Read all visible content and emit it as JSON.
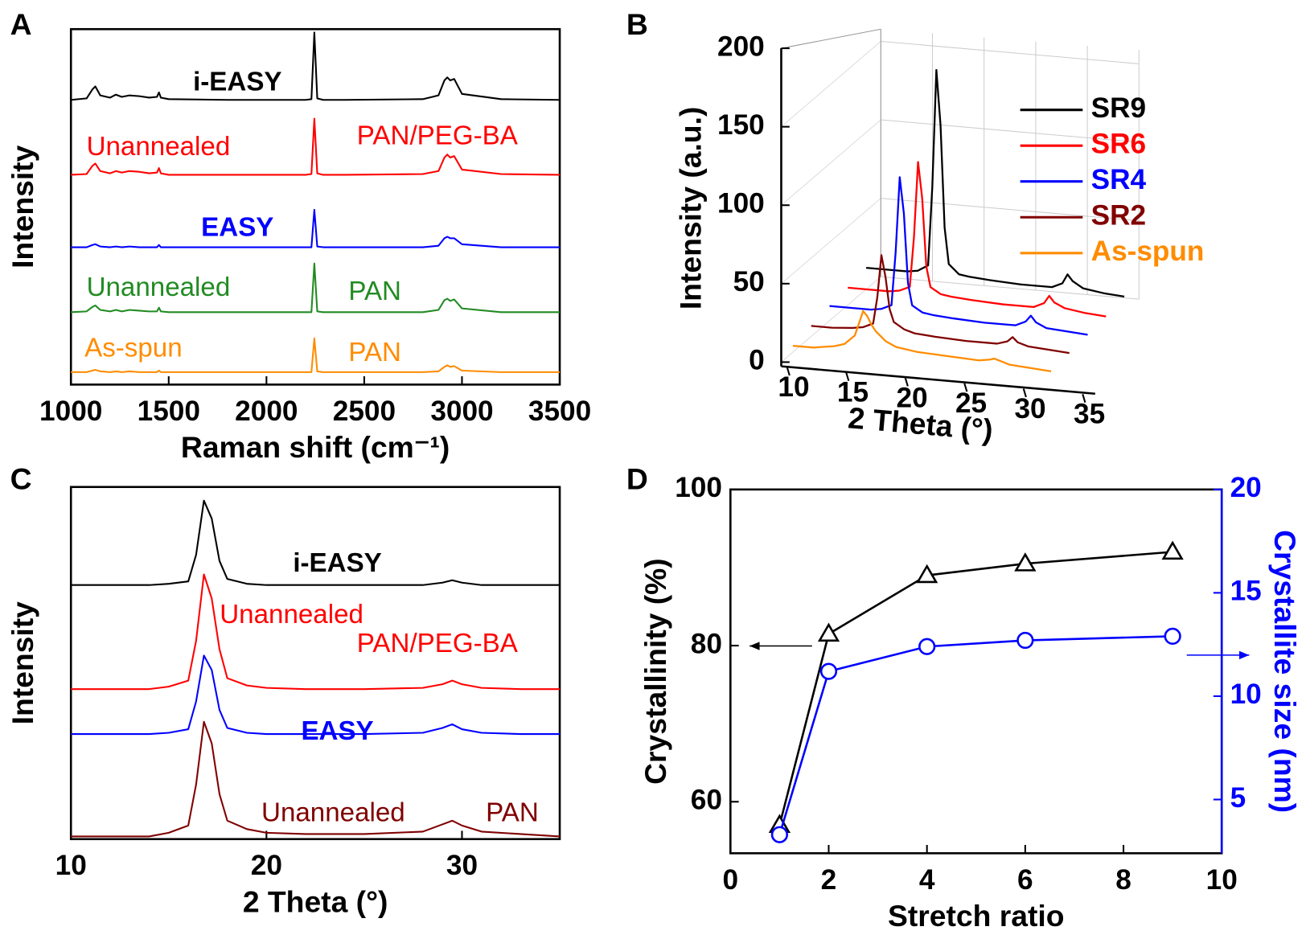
{
  "chart_data": [
    {
      "panel": "A",
      "type": "line",
      "offset_traces": true,
      "xlabel": "Raman shift (cm⁻¹)",
      "ylabel": "Intensity",
      "xlim": [
        1000,
        3500
      ],
      "xticks": [
        1000,
        1500,
        2000,
        2500,
        3000,
        3500
      ],
      "x": [
        1000,
        1080,
        1110,
        1125,
        1150,
        1200,
        1230,
        1260,
        1300,
        1350,
        1400,
        1440,
        1450,
        1460,
        1500,
        1800,
        2100,
        2200,
        2230,
        2245,
        2260,
        2290,
        2400,
        2800,
        2880,
        2910,
        2925,
        2940,
        2960,
        3000,
        3200,
        3500
      ],
      "series": [
        {
          "name": "i-EASY",
          "color": "#000000",
          "bold": true,
          "values": [
            10,
            12,
            24,
            28,
            16,
            13,
            17,
            14,
            16,
            15,
            13,
            14,
            20,
            13,
            11,
            10,
            10,
            10,
            11,
            100,
            12,
            10,
            10,
            11,
            16,
            36,
            40,
            36,
            38,
            18,
            11,
            10
          ]
        },
        {
          "name": "Unannealed",
          "material": "PAN/PEG-BA",
          "color": "#ff0000",
          "values": [
            10,
            11,
            22,
            25,
            15,
            12,
            15,
            13,
            15,
            14,
            12,
            13,
            19,
            12,
            10,
            10,
            10,
            10,
            11,
            85,
            12,
            10,
            10,
            11,
            15,
            33,
            37,
            33,
            35,
            17,
            11,
            10
          ]
        },
        {
          "name": "EASY",
          "color": "#0000ff",
          "bold": true,
          "values": [
            10,
            10,
            13,
            14,
            11,
            10,
            11,
            10,
            11,
            10,
            10,
            10,
            13,
            10,
            10,
            10,
            10,
            10,
            10,
            60,
            11,
            10,
            10,
            10,
            12,
            22,
            24,
            22,
            22,
            14,
            10,
            10
          ]
        },
        {
          "name": "Unannealed",
          "material": "PAN",
          "color": "#228b22",
          "values": [
            10,
            11,
            17,
            19,
            13,
            11,
            13,
            11,
            13,
            12,
            11,
            11,
            16,
            11,
            10,
            10,
            10,
            10,
            10,
            75,
            11,
            10,
            10,
            10,
            13,
            26,
            28,
            25,
            27,
            15,
            10,
            10
          ]
        },
        {
          "name": "As-spun",
          "material": "PAN",
          "color": "#ff8c00",
          "values": [
            10,
            10,
            12,
            13,
            11,
            10,
            11,
            10,
            11,
            10,
            10,
            10,
            12,
            10,
            10,
            10,
            10,
            10,
            10,
            55,
            11,
            10,
            10,
            10,
            11,
            17,
            19,
            17,
            18,
            12,
            10,
            10
          ]
        }
      ]
    },
    {
      "panel": "B",
      "type": "waterfall",
      "xlabel": "2 Theta (°)",
      "ylabel": "Intensity (a.u.)",
      "xlim": [
        10,
        35
      ],
      "xticks": [
        10,
        15,
        20,
        25,
        30,
        35
      ],
      "ylim": [
        0,
        200
      ],
      "yticks": [
        0,
        50,
        100,
        150,
        200
      ],
      "grid": true,
      "legend": "upper right",
      "x": [
        10,
        12,
        14,
        15,
        16,
        16.4,
        16.8,
        17.2,
        17.6,
        18,
        19,
        20,
        22,
        25,
        28,
        29,
        29.5,
        30,
        31,
        33,
        35
      ],
      "series": [
        {
          "name": "SR9",
          "color": "#000000",
          "values": [
            15,
            15,
            15,
            16,
            20,
            70,
            145,
            110,
            45,
            22,
            16,
            15,
            14,
            13,
            13,
            16,
            22,
            18,
            14,
            12,
            11
          ]
        },
        {
          "name": "SR6",
          "color": "#ff0000",
          "values": [
            14,
            14,
            14,
            15,
            18,
            50,
            98,
            75,
            32,
            19,
            15,
            14,
            13,
            12,
            12,
            15,
            20,
            16,
            13,
            11,
            10
          ]
        },
        {
          "name": "SR4",
          "color": "#0000ff",
          "values": [
            14,
            14,
            14,
            15,
            18,
            52,
            100,
            77,
            33,
            19,
            15,
            14,
            13,
            12,
            12,
            15,
            19,
            15,
            12,
            11,
            10
          ]
        },
        {
          "name": "SR2",
          "color": "#800000",
          "values": [
            13,
            13,
            14,
            15,
            18,
            35,
            62,
            48,
            28,
            20,
            16,
            14,
            13,
            12,
            12,
            14,
            17,
            14,
            12,
            11,
            10
          ]
        },
        {
          "name": "As-spun",
          "color": "#ff8c00",
          "values": [
            12,
            12,
            14,
            16,
            22,
            30,
            38,
            35,
            30,
            26,
            20,
            17,
            15,
            14,
            13,
            14,
            15,
            14,
            12,
            11,
            10
          ]
        }
      ]
    },
    {
      "panel": "C",
      "type": "line",
      "offset_traces": true,
      "xlabel": "2 Theta (°)",
      "ylabel": "Intensity",
      "xlim": [
        10,
        35
      ],
      "xticks": [
        10,
        20,
        30
      ],
      "x": [
        10,
        12,
        14,
        15,
        16,
        16.4,
        16.8,
        17.2,
        17.6,
        18,
        19,
        20,
        22,
        25,
        28,
        29,
        29.5,
        30,
        31,
        33,
        35
      ],
      "series": [
        {
          "name": "i-EASY",
          "color": "#000000",
          "bold": true,
          "values": [
            5,
            5,
            5,
            6,
            8,
            30,
            75,
            60,
            25,
            10,
            6,
            5,
            5,
            5,
            5,
            7,
            9,
            7,
            5,
            5,
            5
          ]
        },
        {
          "name": "Unannealed",
          "material": "PAN/PEG-BA",
          "color": "#ff0000",
          "values": [
            5,
            5,
            5,
            7,
            12,
            45,
            100,
            80,
            38,
            14,
            8,
            6,
            5,
            5,
            6,
            9,
            12,
            9,
            6,
            5,
            5
          ]
        },
        {
          "name": "EASY",
          "color": "#0000ff",
          "bold": true,
          "values": [
            5,
            5,
            5,
            6,
            9,
            32,
            70,
            58,
            25,
            10,
            6,
            5,
            5,
            5,
            6,
            10,
            13,
            9,
            6,
            5,
            5
          ]
        },
        {
          "name": "Unannealed",
          "material": "PAN",
          "color": "#800000",
          "values": [
            5,
            5,
            5,
            8,
            14,
            48,
            100,
            82,
            40,
            18,
            11,
            8,
            7,
            7,
            9,
            15,
            18,
            14,
            9,
            7,
            5
          ]
        }
      ]
    },
    {
      "panel": "D",
      "type": "line",
      "xlabel": "Stretch ratio",
      "ylabel": "Crystallinity (%)",
      "y2label": "Crystallite size (nm)",
      "xlim": [
        0,
        10
      ],
      "xticks": [
        0,
        2,
        4,
        6,
        8,
        10
      ],
      "ylim": [
        53.4,
        100
      ],
      "yticks": [
        60,
        80,
        100
      ],
      "y2lim": [
        2.4,
        20
      ],
      "y2ticks": [
        5,
        10,
        15,
        20
      ],
      "x": [
        1,
        2,
        4,
        6,
        9
      ],
      "series": [
        {
          "color": "#000000",
          "marker": "triangle",
          "values": [
            57,
            81.5,
            89,
            90.5,
            92
          ]
        },
        {
          "color": "#0000ff",
          "marker": "circle",
          "axis": "y2",
          "values": [
            3.3,
            11.2,
            12.4,
            12.7,
            12.9
          ]
        }
      ]
    }
  ]
}
